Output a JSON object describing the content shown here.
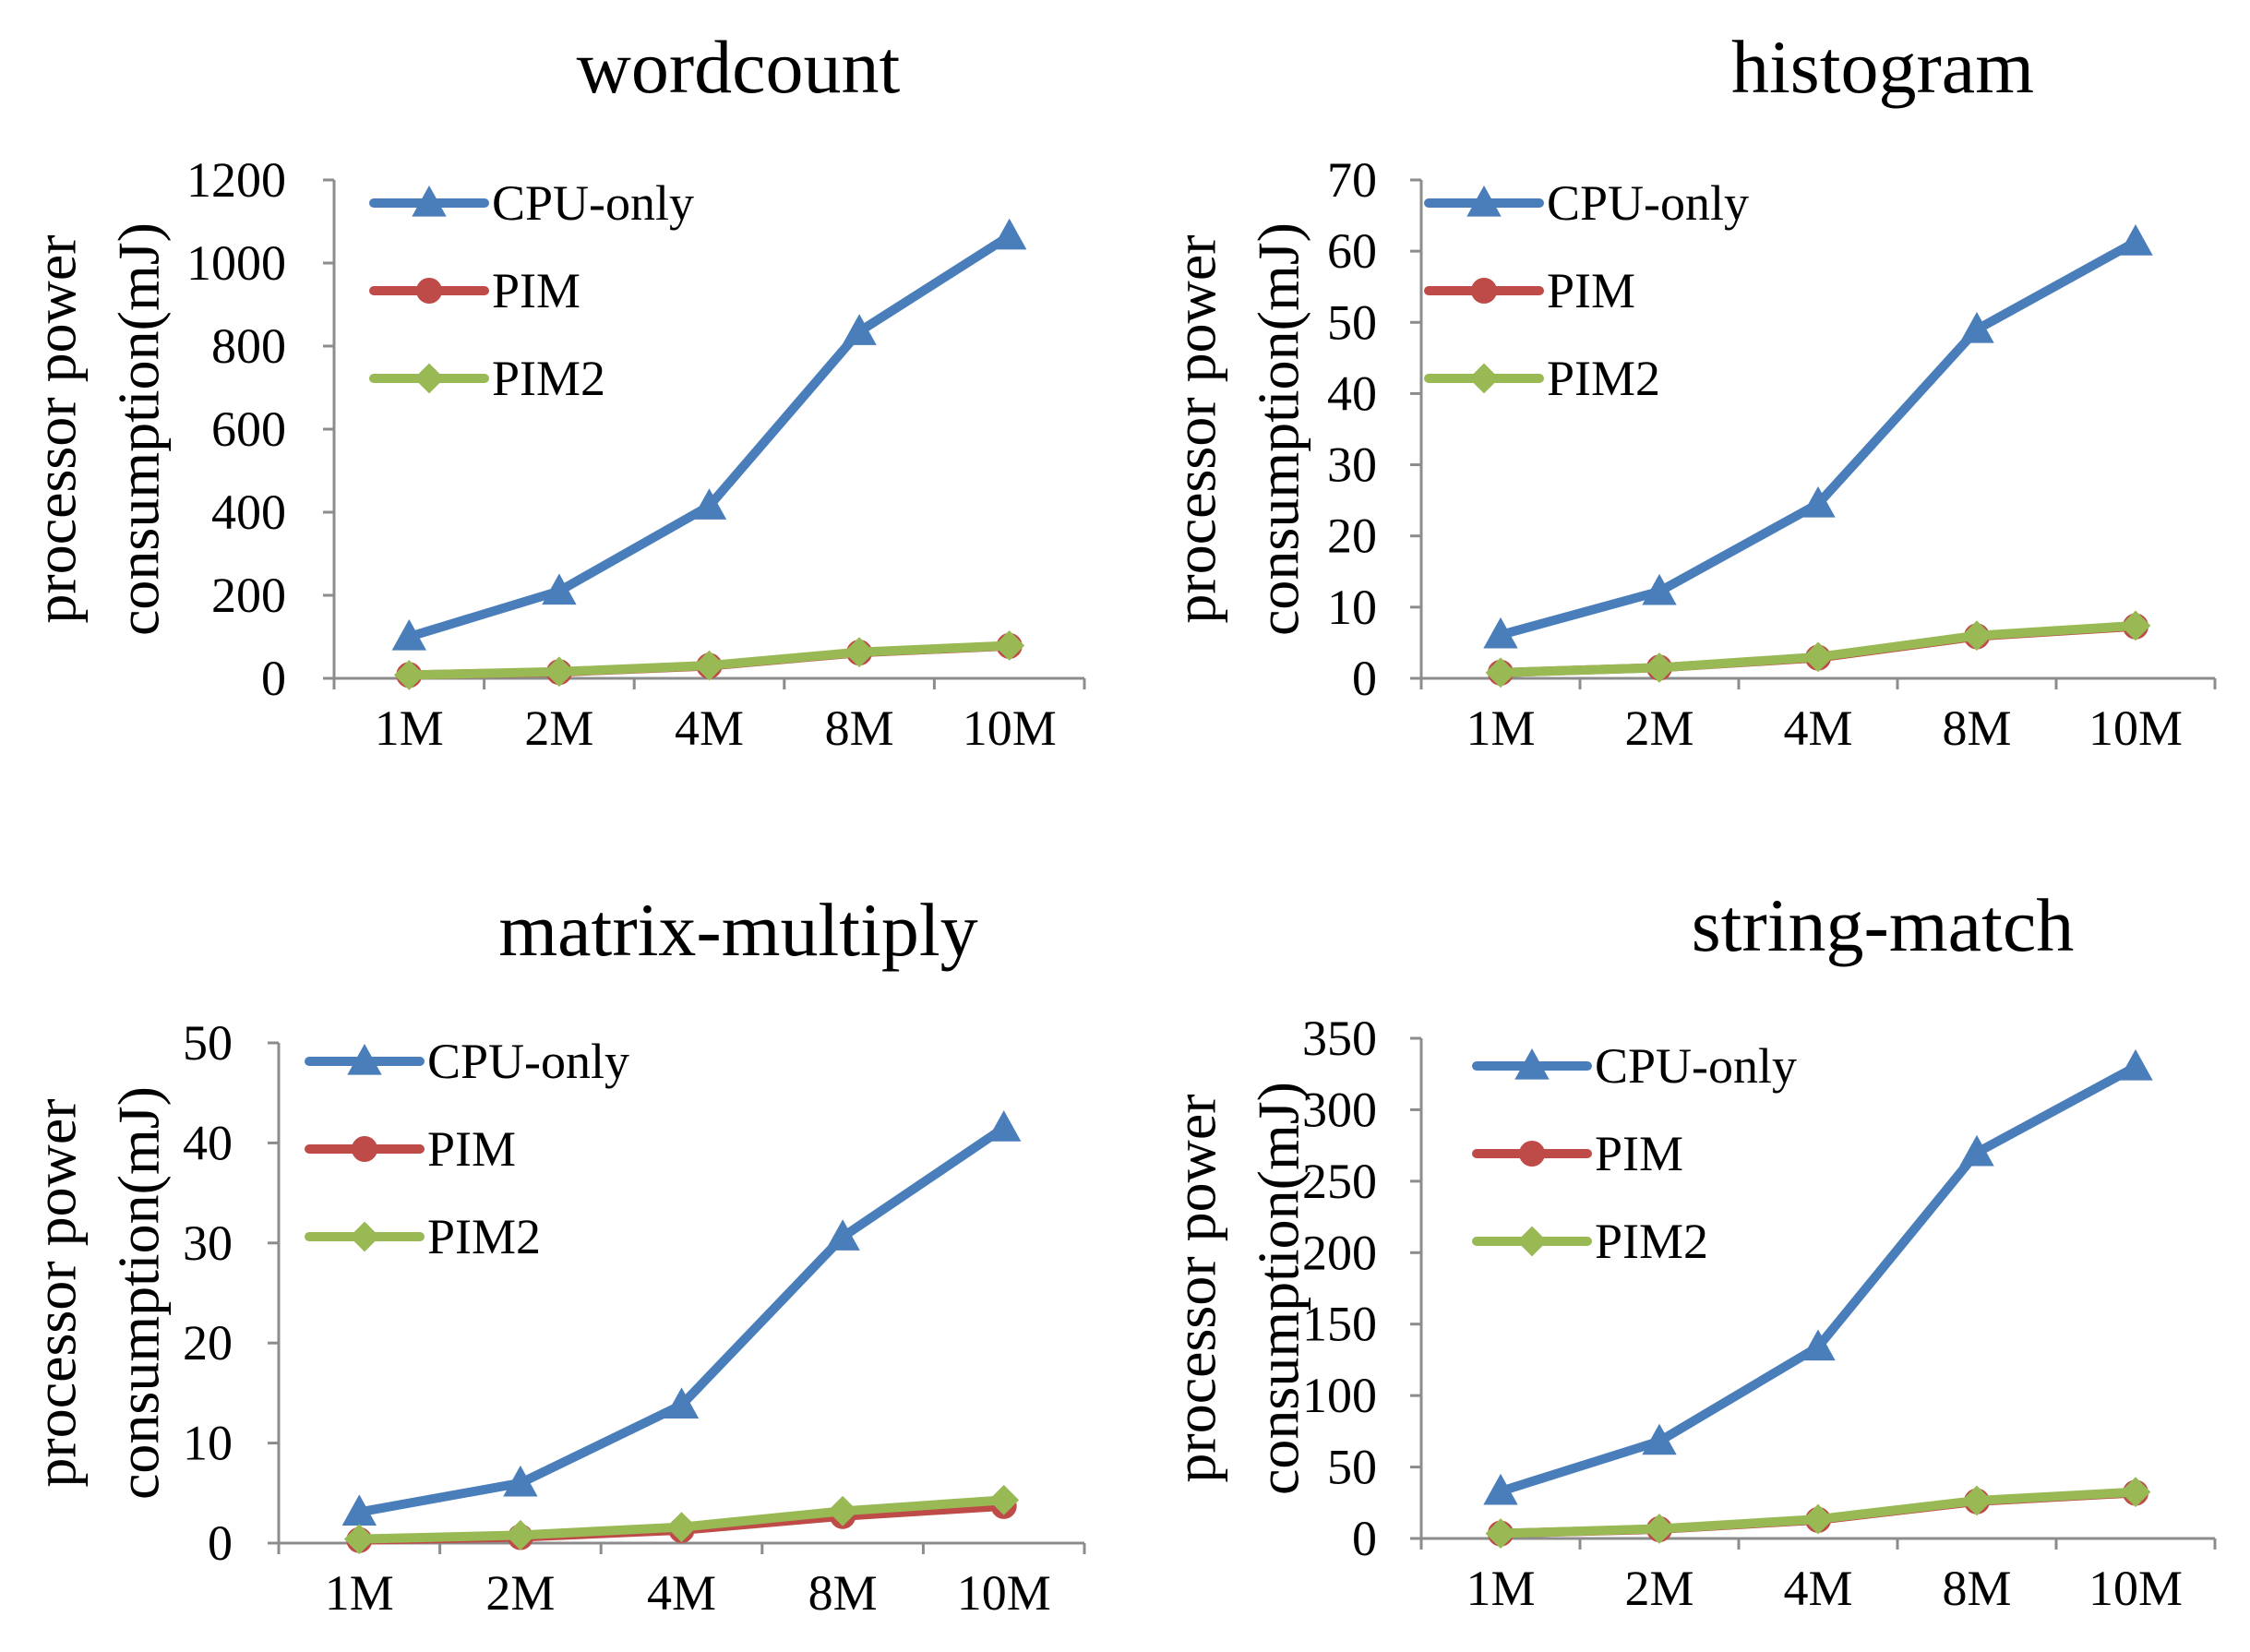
{
  "colors": {
    "cpu": "#4a7ebb",
    "pim": "#be4b48",
    "pim2": "#98b954"
  },
  "chart_data": [
    {
      "type": "line",
      "title": "wordcount",
      "xlabel": "",
      "ylabel_lines": [
        "processor power",
        "consumption(mJ)"
      ],
      "categories": [
        "1M",
        "2M",
        "4M",
        "8M",
        "10M"
      ],
      "ylim": [
        0,
        1200
      ],
      "yticks": [
        0,
        200,
        400,
        600,
        800,
        1000,
        1200
      ],
      "legend_position": "top-left",
      "series": [
        {
          "name": "CPU-only",
          "color_key": "cpu",
          "marker": "triangle",
          "values": [
            100,
            210,
            415,
            835,
            1065
          ]
        },
        {
          "name": "PIM",
          "color_key": "pim",
          "marker": "circle",
          "values": [
            8,
            15,
            30,
            62,
            78
          ]
        },
        {
          "name": "PIM2",
          "color_key": "pim2",
          "marker": "diamond",
          "values": [
            8,
            16,
            31,
            63,
            79
          ]
        }
      ]
    },
    {
      "type": "line",
      "title": "histogram",
      "xlabel": "",
      "ylabel_lines": [
        "processor power",
        "consumption(mJ)"
      ],
      "categories": [
        "1M",
        "2M",
        "4M",
        "8M",
        "10M"
      ],
      "ylim": [
        0,
        70
      ],
      "yticks": [
        0,
        10,
        20,
        30,
        40,
        50,
        60,
        70
      ],
      "legend_position": "top-left",
      "series": [
        {
          "name": "CPU-only",
          "color_key": "cpu",
          "marker": "triangle",
          "values": [
            6.1,
            12.2,
            24.5,
            49,
            61.3
          ]
        },
        {
          "name": "PIM",
          "color_key": "pim",
          "marker": "circle",
          "values": [
            0.8,
            1.5,
            2.9,
            5.9,
            7.3
          ]
        },
        {
          "name": "PIM2",
          "color_key": "pim2",
          "marker": "diamond",
          "values": [
            0.8,
            1.5,
            3,
            6,
            7.4
          ]
        }
      ]
    },
    {
      "type": "line",
      "title": "matrix-multiply",
      "xlabel": "",
      "ylabel_lines": [
        "processor power",
        "consumption(mJ)"
      ],
      "categories": [
        "1M",
        "2M",
        "4M",
        "8M",
        "10M"
      ],
      "ylim": [
        0,
        50
      ],
      "yticks": [
        0,
        10,
        20,
        30,
        40,
        50
      ],
      "legend_position": "top-left",
      "series": [
        {
          "name": "CPU-only",
          "color_key": "cpu",
          "marker": "triangle",
          "values": [
            3.1,
            6,
            13.8,
            30.6,
            41.5
          ]
        },
        {
          "name": "PIM",
          "color_key": "pim",
          "marker": "circle",
          "values": [
            0.3,
            0.6,
            1.3,
            2.7,
            3.7
          ]
        },
        {
          "name": "PIM2",
          "color_key": "pim2",
          "marker": "diamond",
          "values": [
            0.4,
            0.8,
            1.6,
            3.2,
            4.3
          ]
        }
      ]
    },
    {
      "type": "line",
      "title": "string-match",
      "xlabel": "",
      "ylabel_lines": [
        "processor power",
        "consumption(mJ)"
      ],
      "categories": [
        "1M",
        "2M",
        "4M",
        "8M",
        "10M"
      ],
      "ylim": [
        0,
        350
      ],
      "yticks": [
        0,
        50,
        100,
        150,
        200,
        250,
        300,
        350
      ],
      "legend_position": "top-left",
      "series": [
        {
          "name": "CPU-only",
          "color_key": "cpu",
          "marker": "triangle",
          "values": [
            33,
            68,
            134,
            270,
            330
          ]
        },
        {
          "name": "PIM",
          "color_key": "pim",
          "marker": "circle",
          "values": [
            3.5,
            6.5,
            13,
            26,
            32
          ]
        },
        {
          "name": "PIM2",
          "color_key": "pim2",
          "marker": "diamond",
          "values": [
            3.5,
            6.8,
            13.5,
            26.5,
            32.5
          ]
        }
      ]
    }
  ]
}
